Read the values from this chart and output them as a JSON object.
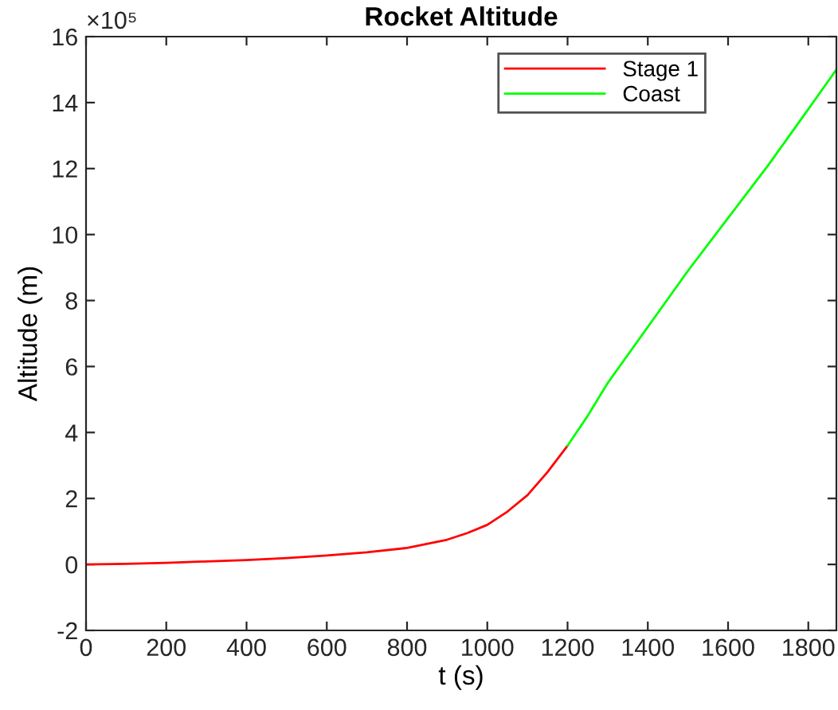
{
  "chart_data": {
    "type": "line",
    "title": "Rocket Altitude",
    "xlabel": "t (s)",
    "ylabel": "Altitude (m)",
    "annotations": [
      "×10⁵"
    ],
    "xlim": [
      0,
      1870
    ],
    "xticks": [
      0,
      200,
      400,
      600,
      800,
      1000,
      1200,
      1400,
      1600,
      1800
    ],
    "ylim": [
      -2,
      16
    ],
    "yticks": [
      -2,
      0,
      2,
      4,
      6,
      8,
      10,
      12,
      14,
      16
    ],
    "grid": false,
    "legend": "top right",
    "marker": "none",
    "line_style": "solid",
    "series": [
      {
        "name": "Stage 1",
        "color": "#ff0000",
        "x": [
          0,
          100,
          200,
          300,
          400,
          500,
          600,
          700,
          800,
          900,
          950,
          1000,
          1050,
          1100,
          1150,
          1200
        ],
        "values": [
          0,
          0.02,
          0.05,
          0.09,
          0.13,
          0.19,
          0.27,
          0.37,
          0.5,
          0.75,
          0.95,
          1.2,
          1.6,
          2.1,
          2.8,
          3.6
        ]
      },
      {
        "name": "Coast",
        "color": "#00ff00",
        "x": [
          1200,
          1250,
          1300,
          1400,
          1500,
          1600,
          1700,
          1800,
          1870
        ],
        "values": [
          3.6,
          4.5,
          5.5,
          7.2,
          8.9,
          10.5,
          12.1,
          13.8,
          15.0
        ]
      }
    ]
  }
}
